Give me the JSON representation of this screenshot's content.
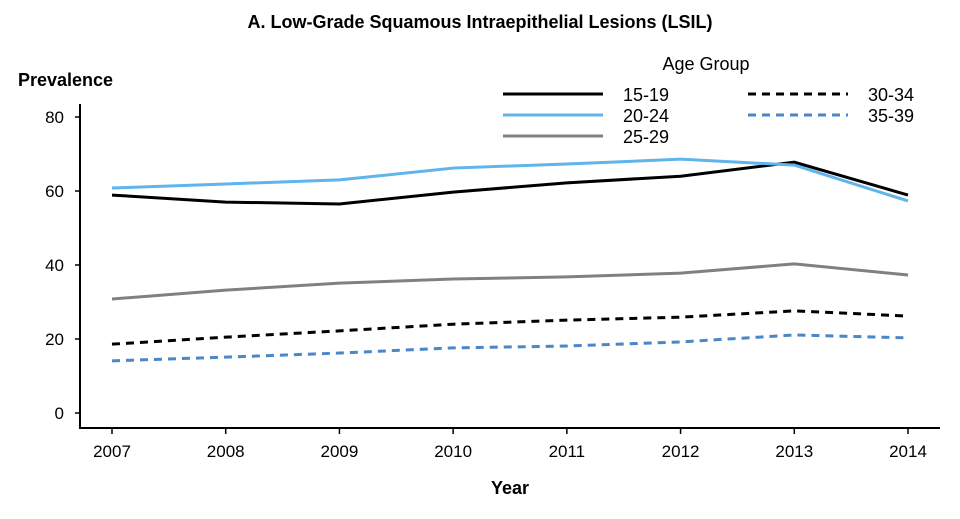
{
  "chart_data": {
    "type": "line",
    "title": "A. Low-Grade Squamous Intraepithelial Lesions (LSIL)",
    "xlabel": "Year",
    "ylabel": "Prevalence",
    "x": [
      2007,
      2008,
      2009,
      2010,
      2011,
      2012,
      2013,
      2014
    ],
    "x_tick_labels": [
      "2007",
      "2008",
      "2009",
      "2010",
      "2011",
      "2012",
      "2013",
      "2014"
    ],
    "y_ticks": [
      0,
      20,
      40,
      60,
      80
    ],
    "y_tick_labels": [
      "0",
      "20",
      "40",
      "60",
      "80"
    ],
    "ylim": [
      0,
      80
    ],
    "grid": false,
    "legend": {
      "title": "Age Group",
      "placement": "top-right"
    },
    "series": [
      {
        "name": "15-19",
        "color": "#000000",
        "dash": "solid",
        "values": [
          58.9,
          57.0,
          56.5,
          59.7,
          62.2,
          64.0,
          67.8,
          58.9
        ]
      },
      {
        "name": "20-24",
        "color": "#5fb4ec",
        "dash": "solid",
        "values": [
          60.8,
          61.9,
          63.0,
          66.2,
          67.3,
          68.6,
          67.0,
          57.3
        ]
      },
      {
        "name": "25-29",
        "color": "#808080",
        "dash": "solid",
        "values": [
          30.8,
          33.2,
          35.1,
          36.2,
          36.8,
          37.8,
          40.3,
          37.3
        ]
      },
      {
        "name": "30-34",
        "color": "#000000",
        "dash": "dashed",
        "values": [
          18.6,
          20.5,
          22.2,
          24.0,
          25.1,
          25.9,
          27.6,
          26.2
        ]
      },
      {
        "name": "35-39",
        "color": "#4a86c8",
        "dash": "dashed",
        "values": [
          14.1,
          15.1,
          16.2,
          17.6,
          18.1,
          19.2,
          21.1,
          20.3
        ]
      }
    ]
  }
}
